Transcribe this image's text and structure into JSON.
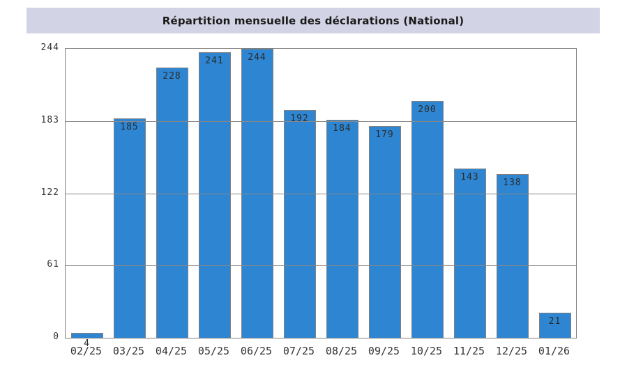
{
  "title_banner": {
    "title": "Répartition mensuelle des déclarations (National)"
  },
  "chart_data": {
    "type": "bar",
    "title": "Répartition mensuelle des déclarations (National)",
    "categories": [
      "02/25",
      "03/25",
      "04/25",
      "05/25",
      "06/25",
      "07/25",
      "08/25",
      "09/25",
      "10/25",
      "11/25",
      "12/25",
      "01/26"
    ],
    "values": [
      4,
      185,
      228,
      241,
      244,
      192,
      184,
      179,
      200,
      143,
      138,
      21
    ],
    "xlabel": "",
    "ylabel": "",
    "ylim": [
      0,
      244
    ],
    "yticks": [
      0,
      61,
      122,
      183,
      244
    ],
    "grid": true,
    "legend": false,
    "bar_value_labels": true
  },
  "colors": {
    "banner_bg": "#D2D3E4",
    "bar_fill": "#2E86D2",
    "bar_stroke": "#808080",
    "plot_border": "#808080",
    "grid_line": "#888888",
    "tick_text": "#333333",
    "value_text": "#2B2B2B",
    "title_text": "#1A1A1A"
  }
}
